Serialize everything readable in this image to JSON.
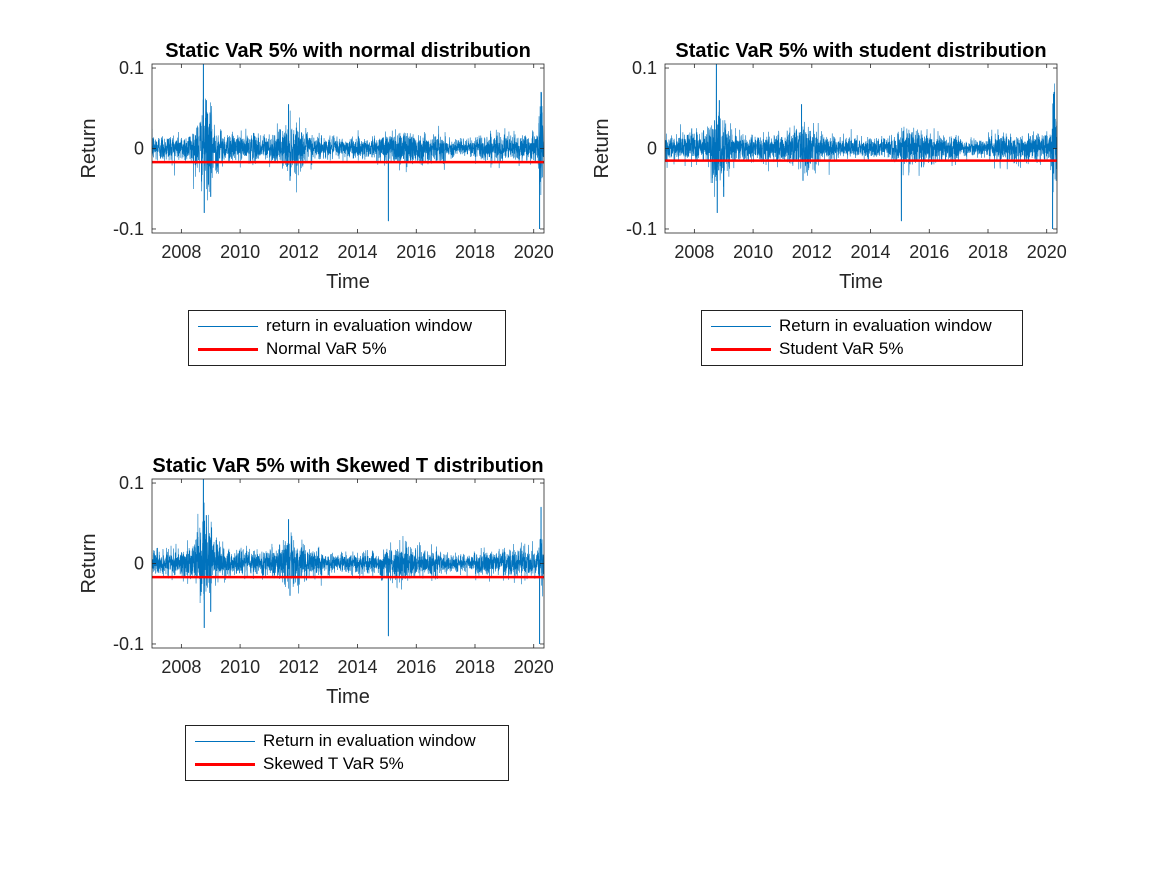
{
  "figure": {
    "background": "#ffffff",
    "return_color": "#0072BD",
    "var_color": "#FF0000"
  },
  "chart_data": [
    {
      "type": "line",
      "title": "Static VaR 5% with normal distribution",
      "xlabel": "Time",
      "ylabel": "Return",
      "xlim": [
        2007.0,
        2020.35
      ],
      "ylim": [
        -0.105,
        0.105
      ],
      "x_ticks": [
        2008,
        2010,
        2012,
        2014,
        2016,
        2018,
        2020
      ],
      "x_tick_labels": [
        "2008",
        "2010",
        "2012",
        "2014",
        "2016",
        "2018",
        "2020"
      ],
      "y_ticks": [
        -0.1,
        0,
        0.1
      ],
      "y_tick_labels": [
        "-0.1",
        "0",
        "0.1"
      ],
      "grid": false,
      "legend_position": "below",
      "series": [
        {
          "name": "return in evaluation window",
          "color": "#0072BD",
          "kind": "daily returns",
          "approx_range": [
            -0.1,
            0.11
          ],
          "spikes": [
            {
              "x": 2008.75,
              "y": 0.11
            },
            {
              "x": 2008.78,
              "y": -0.08
            },
            {
              "x": 2008.85,
              "y": 0.06
            },
            {
              "x": 2009.0,
              "y": -0.06
            },
            {
              "x": 2011.65,
              "y": 0.055
            },
            {
              "x": 2011.7,
              "y": -0.04
            },
            {
              "x": 2015.05,
              "y": -0.09
            },
            {
              "x": 2020.2,
              "y": -0.1
            },
            {
              "x": 2020.25,
              "y": 0.07
            }
          ]
        },
        {
          "name": "Normal VaR 5%",
          "color": "#FF0000",
          "kind": "constant",
          "x": [
            2007.0,
            2020.35
          ],
          "y": [
            -0.017,
            -0.017
          ]
        }
      ]
    },
    {
      "type": "line",
      "title": "Static VaR 5% with student distribution",
      "xlabel": "Time",
      "ylabel": "Return",
      "xlim": [
        2007.0,
        2020.35
      ],
      "ylim": [
        -0.105,
        0.105
      ],
      "x_ticks": [
        2008,
        2010,
        2012,
        2014,
        2016,
        2018,
        2020
      ],
      "x_tick_labels": [
        "2008",
        "2010",
        "2012",
        "2014",
        "2016",
        "2018",
        "2020"
      ],
      "y_ticks": [
        -0.1,
        0,
        0.1
      ],
      "y_tick_labels": [
        "-0.1",
        "0",
        "0.1"
      ],
      "grid": false,
      "legend_position": "below",
      "series": [
        {
          "name": "Return in evaluation window",
          "color": "#0072BD",
          "kind": "daily returns",
          "approx_range": [
            -0.1,
            0.11
          ],
          "spikes": [
            {
              "x": 2008.75,
              "y": 0.11
            },
            {
              "x": 2008.78,
              "y": -0.08
            },
            {
              "x": 2008.85,
              "y": 0.06
            },
            {
              "x": 2009.0,
              "y": -0.06
            },
            {
              "x": 2011.65,
              "y": 0.055
            },
            {
              "x": 2011.7,
              "y": -0.04
            },
            {
              "x": 2015.05,
              "y": -0.09
            },
            {
              "x": 2020.2,
              "y": -0.1
            },
            {
              "x": 2020.25,
              "y": 0.07
            }
          ]
        },
        {
          "name": "Student VaR 5%",
          "color": "#FF0000",
          "kind": "constant",
          "x": [
            2007.0,
            2020.35
          ],
          "y": [
            -0.015,
            -0.015
          ]
        }
      ]
    },
    {
      "type": "line",
      "title": "Static VaR 5% with Skewed T distribution",
      "xlabel": "Time",
      "ylabel": "Return",
      "xlim": [
        2007.0,
        2020.35
      ],
      "ylim": [
        -0.105,
        0.105
      ],
      "x_ticks": [
        2008,
        2010,
        2012,
        2014,
        2016,
        2018,
        2020
      ],
      "x_tick_labels": [
        "2008",
        "2010",
        "2012",
        "2014",
        "2016",
        "2018",
        "2020"
      ],
      "y_ticks": [
        -0.1,
        0,
        0.1
      ],
      "y_tick_labels": [
        "-0.1",
        "0",
        "0.1"
      ],
      "grid": false,
      "legend_position": "below",
      "series": [
        {
          "name": "Return in evaluation window",
          "color": "#0072BD",
          "kind": "daily returns",
          "approx_range": [
            -0.1,
            0.11
          ],
          "spikes": [
            {
              "x": 2008.75,
              "y": 0.11
            },
            {
              "x": 2008.78,
              "y": -0.08
            },
            {
              "x": 2008.85,
              "y": 0.06
            },
            {
              "x": 2009.0,
              "y": -0.06
            },
            {
              "x": 2011.65,
              "y": 0.055
            },
            {
              "x": 2011.7,
              "y": -0.04
            },
            {
              "x": 2015.05,
              "y": -0.09
            },
            {
              "x": 2020.2,
              "y": -0.1
            },
            {
              "x": 2020.25,
              "y": 0.07
            }
          ]
        },
        {
          "name": "Skewed T VaR 5%",
          "color": "#FF0000",
          "kind": "constant",
          "x": [
            2007.0,
            2020.35
          ],
          "y": [
            -0.017,
            -0.017
          ]
        }
      ]
    }
  ]
}
